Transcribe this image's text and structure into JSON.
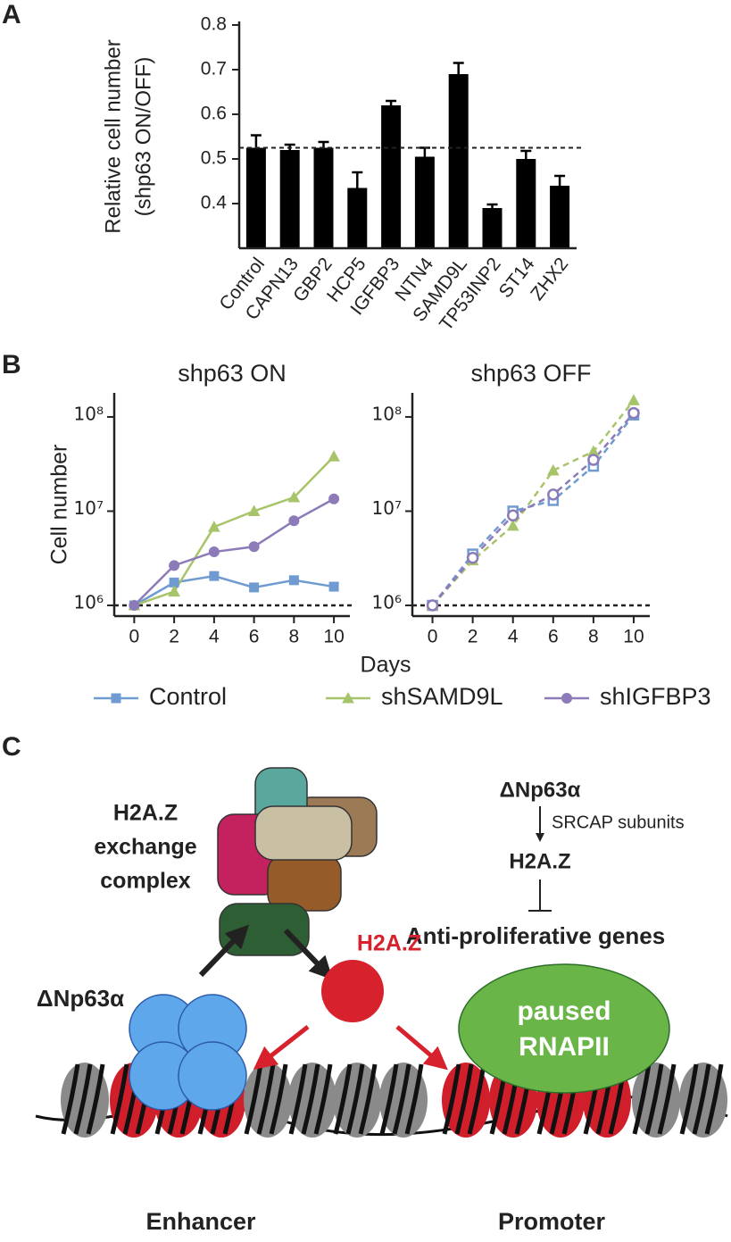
{
  "panel_labels": [
    "A",
    "B",
    "C"
  ],
  "chart_data": [
    {
      "type": "bar",
      "categories": [
        "Control",
        "CAPN13",
        "GBP2",
        "HCP5",
        "IGFBP3",
        "NTN4",
        "SAMD9L",
        "TP53INP2",
        "ST14",
        "ZHX2"
      ],
      "values": [
        0.525,
        0.52,
        0.525,
        0.435,
        0.62,
        0.505,
        0.69,
        0.39,
        0.5,
        0.44
      ],
      "errors": [
        0.028,
        0.012,
        0.013,
        0.035,
        0.01,
        0.02,
        0.025,
        0.008,
        0.018,
        0.022
      ],
      "color": "#000000",
      "ylim": [
        0.3,
        0.8
      ],
      "yticks": [
        0.4,
        0.5,
        0.6,
        0.7,
        0.8
      ],
      "ylabel": [
        "Relative cell number",
        "(shp63 ON/OFF)"
      ],
      "reference_line": 0.525
    },
    {
      "type": "line",
      "title": "shp63 ON",
      "x": [
        0,
        2,
        4,
        6,
        8,
        10
      ],
      "xlim": [
        -1,
        10.8
      ],
      "xticks": [
        0,
        2,
        4,
        6,
        8,
        10
      ],
      "log_scale": true,
      "ylim": [
        770000,
        180000000
      ],
      "yticks": [
        {
          "value": 1000000,
          "label": "10⁶"
        },
        {
          "value": 10000000,
          "label": "10⁷"
        },
        {
          "value": 100000000,
          "label": "10⁸"
        }
      ],
      "reference_line": 1000000,
      "ylabel": "Cell number",
      "xlabel": "Days",
      "line_style": "solid",
      "series": [
        {
          "name": "Control",
          "color": "#6f9bd1",
          "marker": "square",
          "values": [
            1000000,
            1750000,
            2050000,
            1550000,
            1850000,
            1580000
          ]
        },
        {
          "name": "shSAMD9L",
          "color": "#a8c46a",
          "marker": "triangle",
          "values": [
            1000000,
            1400000,
            6800000,
            10000000,
            14000000,
            38000000
          ]
        },
        {
          "name": "shIGFBP3",
          "color": "#8c7bb8",
          "marker": "circle",
          "values": [
            1000000,
            2650000,
            3700000,
            4200000,
            7900000,
            13500000
          ]
        }
      ]
    },
    {
      "type": "line",
      "title": "shp63 OFF",
      "x": [
        0,
        2,
        4,
        6,
        8,
        10
      ],
      "xlim": [
        -1,
        10.8
      ],
      "xticks": [
        0,
        2,
        4,
        6,
        8,
        10
      ],
      "log_scale": true,
      "ylim": [
        770000,
        180000000
      ],
      "yticks": [
        {
          "value": 1000000,
          "label": "10⁶"
        },
        {
          "value": 10000000,
          "label": "10⁷"
        },
        {
          "value": 100000000,
          "label": "10⁸"
        }
      ],
      "reference_line": 1000000,
      "line_style": "dashed",
      "series": [
        {
          "color": "#6f9bd1",
          "marker": "square",
          "values": [
            1000000,
            3500000,
            10000000,
            13000000,
            30000000,
            105000000
          ]
        },
        {
          "color": "#a8c46a",
          "marker": "triangle",
          "values": [
            1000000,
            3000000,
            7000000,
            27000000,
            43000000,
            150000000
          ]
        },
        {
          "color": "#8c7bb8",
          "marker": "circle",
          "values": [
            1000000,
            3200000,
            9000000,
            15000000,
            35000000,
            110000000
          ]
        }
      ]
    }
  ],
  "diagram": {
    "complex_label": [
      "H2A.Z",
      "exchange",
      "complex"
    ],
    "pathway": {
      "top": "ΔNp63α",
      "edge": "SRCAP subunits",
      "middle": "H2A.Z",
      "bottom": "Anti-proliferative genes"
    },
    "factor": "ΔNp63α",
    "histone": "H2A.Z",
    "polymerase": [
      "paused",
      "RNAPII"
    ],
    "regions": [
      "Enhancer",
      "Promoter"
    ]
  }
}
